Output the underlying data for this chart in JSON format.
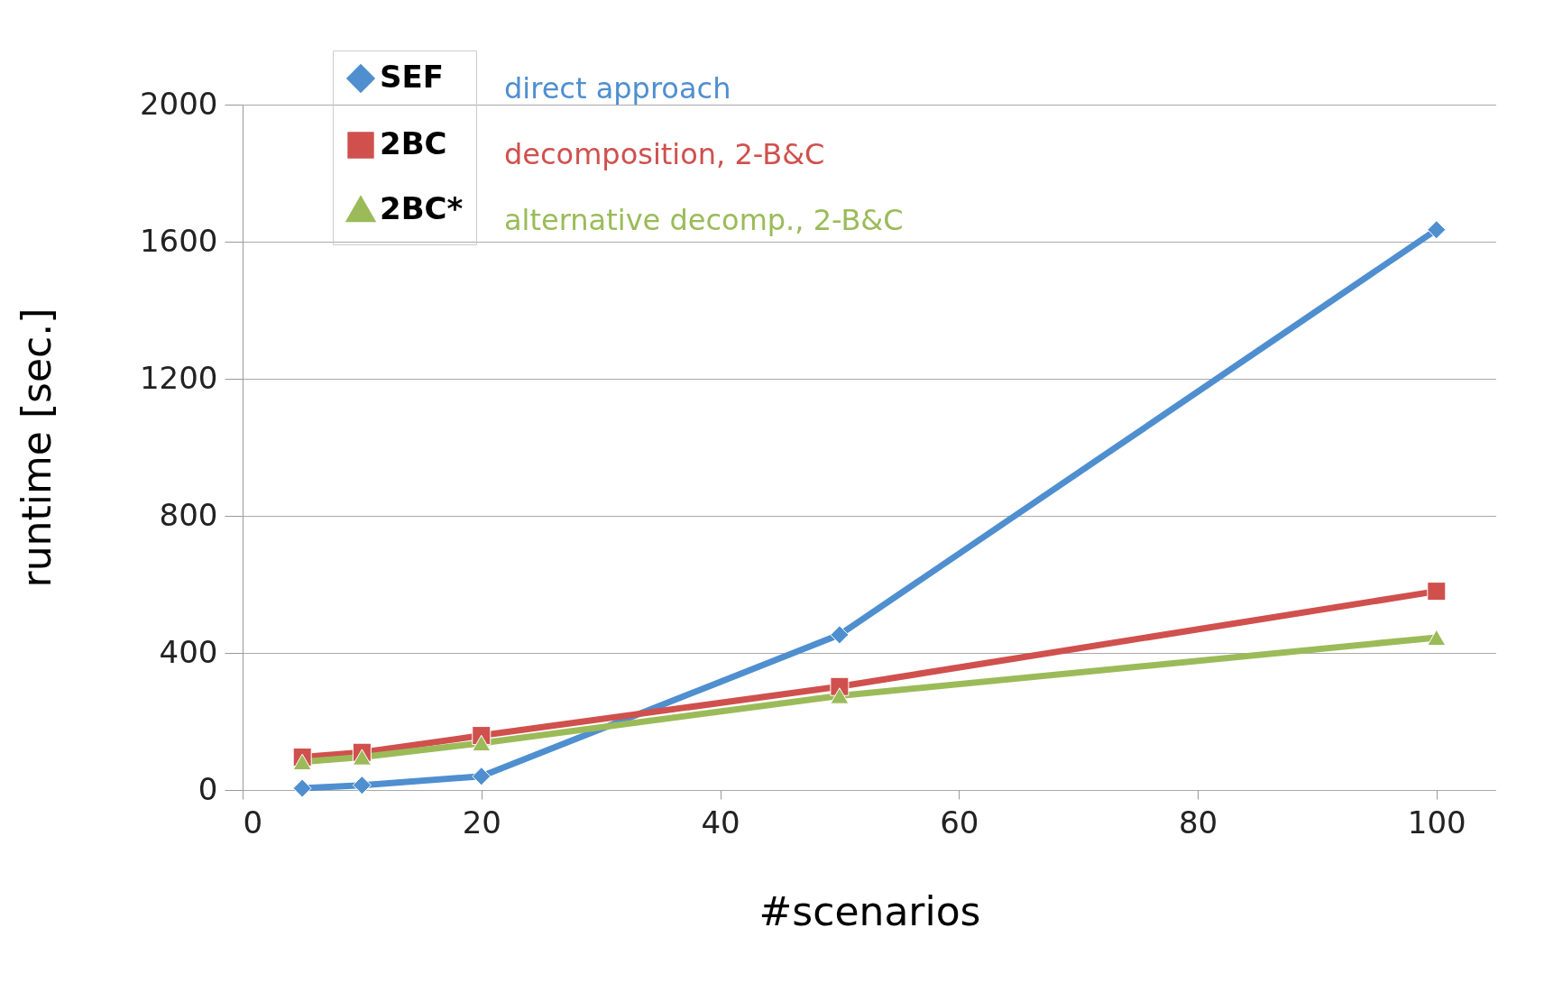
{
  "chart_data": {
    "type": "line",
    "xlabel": "#scenarios",
    "ylabel": "runtime [sec.]",
    "xlim": [
      0,
      105
    ],
    "xticks": [
      0,
      20,
      40,
      60,
      80,
      100
    ],
    "ylim": [
      0,
      2000
    ],
    "yticks": [
      0,
      400,
      800,
      1200,
      1600,
      2000
    ],
    "grid": "y",
    "legend": "top left",
    "x": [
      5,
      10,
      20,
      50,
      100
    ],
    "series": [
      {
        "name": "SEF",
        "color": "#4f8fd0",
        "marker": "diamond",
        "values": [
          5,
          14,
          40,
          453,
          1635
        ]
      },
      {
        "name": "2BC",
        "color": "#d0504d",
        "marker": "square",
        "values": [
          96,
          110,
          159,
          302,
          580
        ]
      },
      {
        "name": "2BC*",
        "color": "#9bbb59",
        "marker": "triangle",
        "values": [
          82,
          96,
          137,
          275,
          445
        ]
      }
    ],
    "annotations": [
      "direct approach",
      "decomposition, 2-B&C",
      "alternative decomp., 2-B&C"
    ]
  }
}
